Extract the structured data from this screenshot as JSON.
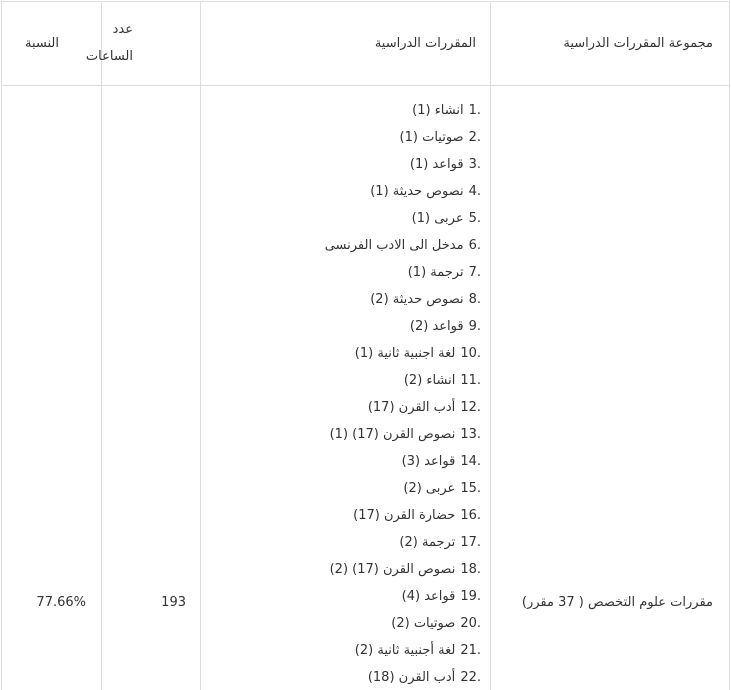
{
  "headers": {
    "group": "مجموعة المقررات الدراسية",
    "courses": "المقررات الدراسية",
    "hours_line1": "عدد",
    "hours_line2": "الساعات",
    "percent": "النسبة"
  },
  "row": {
    "group": "مقررات علوم التخصص ( 37 مقرر)",
    "hours": "193",
    "percent": "77.66%",
    "courses": [
      {
        "n": "1.",
        "t": "انشاء (1)"
      },
      {
        "n": "2.",
        "t": "صوتيات (1)"
      },
      {
        "n": "3.",
        "t": "قواعد (1)"
      },
      {
        "n": "4.",
        "t": "نصوص حديثة (1)"
      },
      {
        "n": "5.",
        "t": "عربى (1)"
      },
      {
        "n": "6.",
        "t": "مدخل الى الادب الفرنسى"
      },
      {
        "n": "7.",
        "t": "ترجمة (1)"
      },
      {
        "n": "8.",
        "t": "نصوص حديثة (2)"
      },
      {
        "n": "9.",
        "t": "قواعد (2)"
      },
      {
        "n": "10.",
        "t": "لغة اجنبية ثانية (1)"
      },
      {
        "n": "11.",
        "t": "انشاء (2)"
      },
      {
        "n": "12.",
        "t": "أدب القرن (17)"
      },
      {
        "n": "13.",
        "t": "نصوص القرن (17) (1)"
      },
      {
        "n": "14.",
        "t": "قواعد (3)"
      },
      {
        "n": "15.",
        "t": "عربى (2)"
      },
      {
        "n": "16.",
        "t": "حضارة القرن (17)"
      },
      {
        "n": "17.",
        "t": "ترجمة (2)"
      },
      {
        "n": "18.",
        "t": "نصوص القرن (17) (2)"
      },
      {
        "n": "19.",
        "t": "قواعد (4)"
      },
      {
        "n": "20.",
        "t": "صوتيات (2)"
      },
      {
        "n": "21.",
        "t": "لغة أجنبية ثانية (2)"
      },
      {
        "n": "22.",
        "t": "أدب القرن (18)"
      }
    ]
  }
}
